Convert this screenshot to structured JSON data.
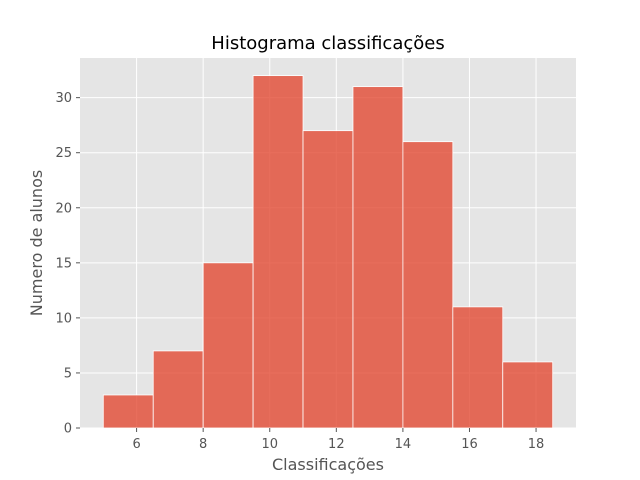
{
  "chart_data": {
    "type": "bar",
    "title": "Histograma classificações",
    "xlabel": "Classificações",
    "ylabel": "Numero de alunos",
    "bins": [
      {
        "start": 5.0,
        "end": 6.5,
        "count": 3
      },
      {
        "start": 6.5,
        "end": 8.0,
        "count": 7
      },
      {
        "start": 8.0,
        "end": 9.5,
        "count": 15
      },
      {
        "start": 9.5,
        "end": 11.0,
        "count": 32
      },
      {
        "start": 11.0,
        "end": 12.5,
        "count": 27
      },
      {
        "start": 12.5,
        "end": 14.0,
        "count": 31
      },
      {
        "start": 14.0,
        "end": 15.5,
        "count": 26
      },
      {
        "start": 15.5,
        "end": 17.0,
        "count": 11
      },
      {
        "start": 17.0,
        "end": 18.5,
        "count": 6
      }
    ],
    "xlim": [
      4.3,
      19.2
    ],
    "ylim": [
      0,
      33.6
    ],
    "xticks": [
      6,
      8,
      10,
      12,
      14,
      16,
      18
    ],
    "yticks": [
      0,
      5,
      10,
      15,
      20,
      25,
      30
    ],
    "grid": true,
    "bar_color": "#E24A33",
    "background_color": "#E5E5E5"
  }
}
